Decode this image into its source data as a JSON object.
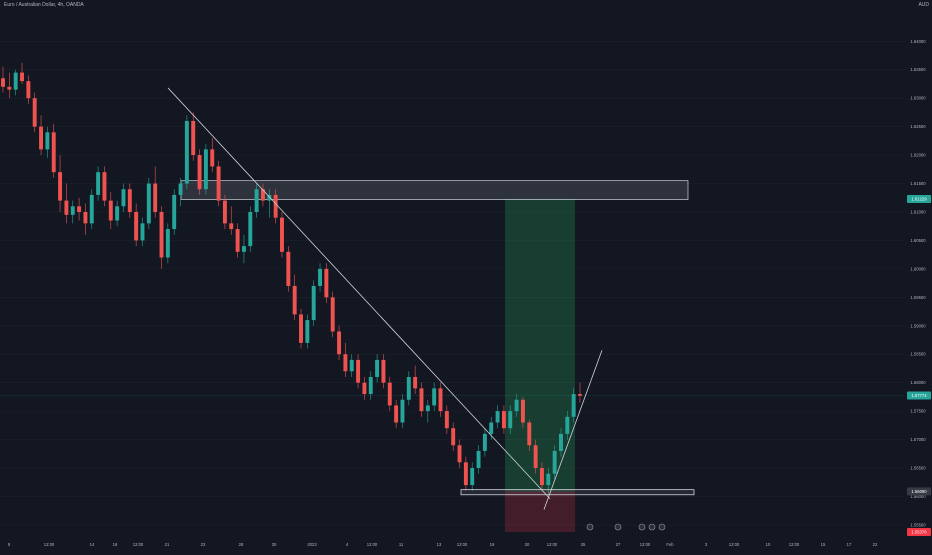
{
  "header": {
    "symbol_title": "Euro / Australian Dollar, 4h, OANDA",
    "currency_label": "AUD"
  },
  "colors": {
    "background": "#131722",
    "up_candle": "#26a69a",
    "down_candle": "#ef5350",
    "zone_fill": "rgba(120,123,134,0.28)",
    "zone_border": "#d1d4dc",
    "target_fill": "rgba(38,166,91,0.28)",
    "stop_fill": "rgba(242,54,69,0.22)",
    "current_price_tag": "#26a69a",
    "target_price_tag": "#26a69a",
    "stop_price_tag": "#f23645",
    "entry_price_tag": "#363a45"
  },
  "chart_data": {
    "type": "candlestick",
    "y_axis_ticks": [
      "1.64000",
      "1.63500",
      "1.63000",
      "1.62500",
      "1.62000",
      "1.61500",
      "1.61000",
      "1.60500",
      "1.60000",
      "1.59500",
      "1.59000",
      "1.58500",
      "1.58000",
      "1.57500",
      "1.57000",
      "1.56500",
      "1.56000",
      "1.55500"
    ],
    "y_tick_values": [
      1.64,
      1.635,
      1.63,
      1.625,
      1.62,
      1.615,
      1.61,
      1.605,
      1.6,
      1.595,
      1.59,
      1.585,
      1.58,
      1.575,
      1.57,
      1.565,
      1.56,
      1.555
    ],
    "ylim": [
      1.5527,
      1.6455
    ],
    "x_axis_ticks": [
      "9",
      "12:00",
      "14",
      "16",
      "12:00",
      "21",
      "23",
      "28",
      "30",
      "2023",
      "4",
      "12:00",
      "11",
      "13",
      "12:00",
      "19",
      "20",
      "12:00",
      "25",
      "27",
      "12:00",
      "Feb",
      "3",
      "12:00",
      "10",
      "12:00",
      "15",
      "17",
      "22"
    ],
    "price_tags": {
      "target": {
        "label": "1.61229",
        "value": 1.61229
      },
      "current": {
        "label": "1.57774",
        "value": 1.57774
      },
      "entry": {
        "label": "1.56090",
        "value": 1.5609
      },
      "stop": {
        "label": "1.55376",
        "value": 1.55376
      }
    },
    "supply_zone": {
      "top": 1.6155,
      "bottom": 1.6122,
      "x_start": 181,
      "x_end": 688
    },
    "demand_zone": {
      "top": 1.5612,
      "bottom": 1.5603,
      "x_start": 461,
      "x_end": 694
    },
    "long_position": {
      "entry": 1.5609,
      "target": 1.61229,
      "stop": 1.55376,
      "x_start": 505,
      "x_end": 575
    },
    "descending_trendline": {
      "start": [
        168,
        1.6318
      ],
      "end": [
        550,
        1.5596
      ]
    },
    "ascending_trendline": {
      "start": [
        544,
        1.5577
      ],
      "end": [
        602,
        1.5857
      ]
    },
    "ohlc_4h": [
      [
        1.6335,
        1.6355,
        1.631,
        1.632
      ],
      [
        1.632,
        1.6345,
        1.63,
        1.6315
      ],
      [
        1.6315,
        1.635,
        1.6305,
        1.6345
      ],
      [
        1.6345,
        1.6362,
        1.6325,
        1.633
      ],
      [
        1.633,
        1.634,
        1.629,
        1.63
      ],
      [
        1.63,
        1.631,
        1.624,
        1.625
      ],
      [
        1.625,
        1.627,
        1.62,
        1.621
      ],
      [
        1.621,
        1.625,
        1.6195,
        1.624
      ],
      [
        1.624,
        1.6255,
        1.616,
        1.617
      ],
      [
        1.617,
        1.62,
        1.61,
        1.612
      ],
      [
        1.612,
        1.615,
        1.608,
        1.6095
      ],
      [
        1.6095,
        1.612,
        1.608,
        1.611
      ],
      [
        1.611,
        1.6125,
        1.6085,
        1.61
      ],
      [
        1.61,
        1.6115,
        1.606,
        1.608
      ],
      [
        1.608,
        1.614,
        1.607,
        1.613
      ],
      [
        1.613,
        1.618,
        1.612,
        1.617
      ],
      [
        1.617,
        1.618,
        1.611,
        1.612
      ],
      [
        1.612,
        1.6135,
        1.607,
        1.6085
      ],
      [
        1.6085,
        1.612,
        1.6075,
        1.611
      ],
      [
        1.611,
        1.615,
        1.61,
        1.614
      ],
      [
        1.614,
        1.615,
        1.609,
        1.61
      ],
      [
        1.61,
        1.6115,
        1.604,
        1.605
      ],
      [
        1.605,
        1.609,
        1.604,
        1.608
      ],
      [
        1.608,
        1.616,
        1.607,
        1.615
      ],
      [
        1.615,
        1.618,
        1.609,
        1.61
      ],
      [
        1.61,
        1.611,
        1.6,
        1.602
      ],
      [
        1.602,
        1.608,
        1.601,
        1.607
      ],
      [
        1.607,
        1.614,
        1.606,
        1.613
      ],
      [
        1.613,
        1.616,
        1.611,
        1.615
      ],
      [
        1.615,
        1.627,
        1.614,
        1.626
      ],
      [
        1.626,
        1.6275,
        1.619,
        1.62
      ],
      [
        1.62,
        1.621,
        1.613,
        1.614
      ],
      [
        1.614,
        1.622,
        1.613,
        1.621
      ],
      [
        1.621,
        1.623,
        1.617,
        1.618
      ],
      [
        1.618,
        1.619,
        1.611,
        1.612
      ],
      [
        1.612,
        1.613,
        1.607,
        1.608
      ],
      [
        1.608,
        1.611,
        1.606,
        1.607
      ],
      [
        1.607,
        1.608,
        1.602,
        1.603
      ],
      [
        1.603,
        1.606,
        1.601,
        1.604
      ],
      [
        1.604,
        1.611,
        1.603,
        1.61
      ],
      [
        1.61,
        1.615,
        1.609,
        1.614
      ],
      [
        1.614,
        1.615,
        1.611,
        1.612
      ],
      [
        1.612,
        1.614,
        1.609,
        1.613
      ],
      [
        1.613,
        1.614,
        1.608,
        1.609
      ],
      [
        1.609,
        1.61,
        1.602,
        1.603
      ],
      [
        1.603,
        1.604,
        1.596,
        1.597
      ],
      [
        1.597,
        1.599,
        1.591,
        1.592
      ],
      [
        1.592,
        1.593,
        1.586,
        1.587
      ],
      [
        1.587,
        1.592,
        1.586,
        1.591
      ],
      [
        1.591,
        1.598,
        1.59,
        1.597
      ],
      [
        1.597,
        1.601,
        1.596,
        1.6
      ],
      [
        1.6,
        1.601,
        1.594,
        1.595
      ],
      [
        1.595,
        1.596,
        1.588,
        1.589
      ],
      [
        1.589,
        1.59,
        1.584,
        1.585
      ],
      [
        1.585,
        1.587,
        1.581,
        1.582
      ],
      [
        1.582,
        1.585,
        1.581,
        1.584
      ],
      [
        1.584,
        1.585,
        1.579,
        1.58
      ],
      [
        1.58,
        1.581,
        1.577,
        1.578
      ],
      [
        1.578,
        1.582,
        1.577,
        1.581
      ],
      [
        1.581,
        1.585,
        1.58,
        1.584
      ],
      [
        1.584,
        1.585,
        1.579,
        1.58
      ],
      [
        1.58,
        1.581,
        1.575,
        1.576
      ],
      [
        1.576,
        1.577,
        1.572,
        1.573
      ],
      [
        1.573,
        1.578,
        1.572,
        1.577
      ],
      [
        1.577,
        1.582,
        1.576,
        1.581
      ],
      [
        1.581,
        1.583,
        1.578,
        1.579
      ],
      [
        1.579,
        1.58,
        1.574,
        1.575
      ],
      [
        1.575,
        1.577,
        1.573,
        1.576
      ],
      [
        1.576,
        1.58,
        1.575,
        1.579
      ],
      [
        1.579,
        1.58,
        1.574,
        1.575
      ],
      [
        1.575,
        1.576,
        1.571,
        1.572
      ],
      [
        1.572,
        1.573,
        1.568,
        1.569
      ],
      [
        1.569,
        1.57,
        1.565,
        1.566
      ],
      [
        1.566,
        1.567,
        1.561,
        1.562
      ],
      [
        1.562,
        1.566,
        1.561,
        1.565
      ],
      [
        1.565,
        1.569,
        1.564,
        1.568
      ],
      [
        1.568,
        1.572,
        1.567,
        1.571
      ],
      [
        1.571,
        1.574,
        1.57,
        1.573
      ],
      [
        1.573,
        1.576,
        1.572,
        1.575
      ],
      [
        1.575,
        1.576,
        1.571,
        1.572
      ],
      [
        1.572,
        1.576,
        1.571,
        1.575
      ],
      [
        1.575,
        1.578,
        1.574,
        1.577
      ],
      [
        1.577,
        1.5775,
        1.572,
        1.573
      ],
      [
        1.573,
        1.5735,
        1.568,
        1.569
      ],
      [
        1.569,
        1.57,
        1.564,
        1.565
      ],
      [
        1.565,
        1.566,
        1.561,
        1.562
      ],
      [
        1.562,
        1.565,
        1.5603,
        1.564
      ],
      [
        1.564,
        1.569,
        1.563,
        1.568
      ],
      [
        1.568,
        1.572,
        1.567,
        1.571
      ],
      [
        1.571,
        1.575,
        1.57,
        1.574
      ],
      [
        1.574,
        1.579,
        1.573,
        1.578
      ],
      [
        1.578,
        1.58,
        1.5765,
        1.5777
      ]
    ]
  }
}
